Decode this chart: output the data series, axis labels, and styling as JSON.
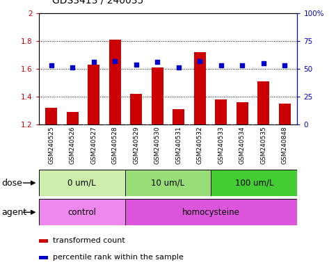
{
  "title": "GDS3413 / 240035",
  "samples": [
    "GSM240525",
    "GSM240526",
    "GSM240527",
    "GSM240528",
    "GSM240529",
    "GSM240530",
    "GSM240531",
    "GSM240532",
    "GSM240533",
    "GSM240534",
    "GSM240535",
    "GSM240848"
  ],
  "transformed_count": [
    1.32,
    1.29,
    1.63,
    1.81,
    1.42,
    1.61,
    1.31,
    1.72,
    1.38,
    1.36,
    1.51,
    1.35
  ],
  "percentile_rank": [
    53,
    51,
    56,
    57,
    54,
    56,
    51,
    57,
    53,
    53,
    55,
    53
  ],
  "ylim_left": [
    1.2,
    2.0
  ],
  "ylim_right": [
    0,
    100
  ],
  "yticks_left": [
    1.2,
    1.4,
    1.6,
    1.8,
    2.0
  ],
  "yticks_right": [
    0,
    25,
    50,
    75,
    100
  ],
  "ytick_labels_left": [
    "1.2",
    "1.4",
    "1.6",
    "1.8",
    "2"
  ],
  "ytick_labels_right": [
    "0",
    "25",
    "50",
    "75",
    "100%"
  ],
  "bar_color": "#cc0000",
  "dot_color": "#0000cc",
  "bar_bottom": 1.2,
  "dose_groups": [
    {
      "label": "0 um/L",
      "start": 0,
      "end": 4,
      "color": "#cceeaa"
    },
    {
      "label": "10 um/L",
      "start": 4,
      "end": 8,
      "color": "#99dd88"
    },
    {
      "label": "100 um/L",
      "start": 8,
      "end": 12,
      "color": "#55cc44"
    }
  ],
  "agent_groups": [
    {
      "label": "control",
      "start": 0,
      "end": 4,
      "color": "#ee88ee"
    },
    {
      "label": "homocysteine",
      "start": 4,
      "end": 12,
      "color": "#dd66dd"
    }
  ],
  "dose_label": "dose",
  "agent_label": "agent",
  "legend_bar_label": "transformed count",
  "legend_dot_label": "percentile rank within the sample",
  "title_color": "#333333",
  "tick_fontsize": 7.5,
  "title_fontsize": 10,
  "group_label_fontsize": 8.5,
  "legend_fontsize": 8,
  "xlabel_area_bg": "#cccccc",
  "plot_bg": "#ffffff"
}
